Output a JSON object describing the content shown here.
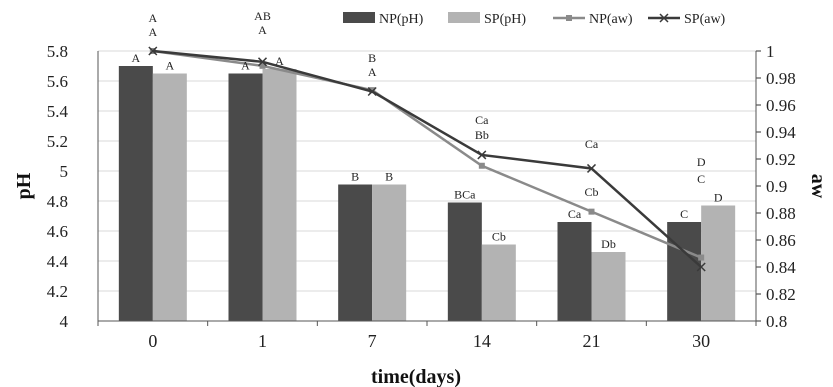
{
  "chart_data": {
    "type": "bar",
    "categories": [
      "0",
      "1",
      "7",
      "14",
      "21",
      "30"
    ],
    "xlabel": "time(days)",
    "ylabel": "pH",
    "y2label": "aw",
    "ylim": [
      4,
      5.8
    ],
    "yticks": [
      "4",
      "4.2",
      "4.4",
      "4.6",
      "4.8",
      "5",
      "5.2",
      "5.4",
      "5.6",
      "5.8"
    ],
    "y2lim": [
      0.8,
      1.0
    ],
    "y2ticks": [
      "0.8",
      "0.82",
      "0.84",
      "0.86",
      "0.88",
      "0.9",
      "0.92",
      "0.94",
      "0.96",
      "0.98",
      "1"
    ],
    "legend_position": "top-right",
    "series": [
      {
        "name": "NP(pH)",
        "kind": "bar",
        "color": "#4a4a4a",
        "values": [
          5.7,
          5.65,
          4.91,
          4.79,
          4.66,
          4.66
        ],
        "labels": [
          "A",
          "A",
          "B",
          "BCa",
          "Ca",
          "C"
        ]
      },
      {
        "name": "SP(pH)",
        "kind": "bar",
        "color": "#b3b3b3",
        "values": [
          5.65,
          5.68,
          4.91,
          4.51,
          4.46,
          4.77
        ],
        "labels": [
          "A",
          "A",
          "B",
          "Cb",
          "Db",
          "D"
        ]
      },
      {
        "name": "NP(aw)",
        "kind": "line",
        "axis": "right",
        "color": "#8a8a8a",
        "values": [
          1.0,
          0.989,
          0.971,
          0.915,
          0.881,
          0.847
        ],
        "labels": [
          "A",
          "A",
          "A",
          "Bb",
          "Cb",
          "C"
        ]
      },
      {
        "name": "SP(aw)",
        "kind": "line",
        "axis": "right",
        "color": "#3a3a3a",
        "values": [
          1.0,
          0.992,
          0.97,
          0.923,
          0.913,
          0.84
        ],
        "labels": [
          "A",
          "AB",
          "B",
          "Ca",
          "Ca",
          "D"
        ]
      }
    ]
  }
}
